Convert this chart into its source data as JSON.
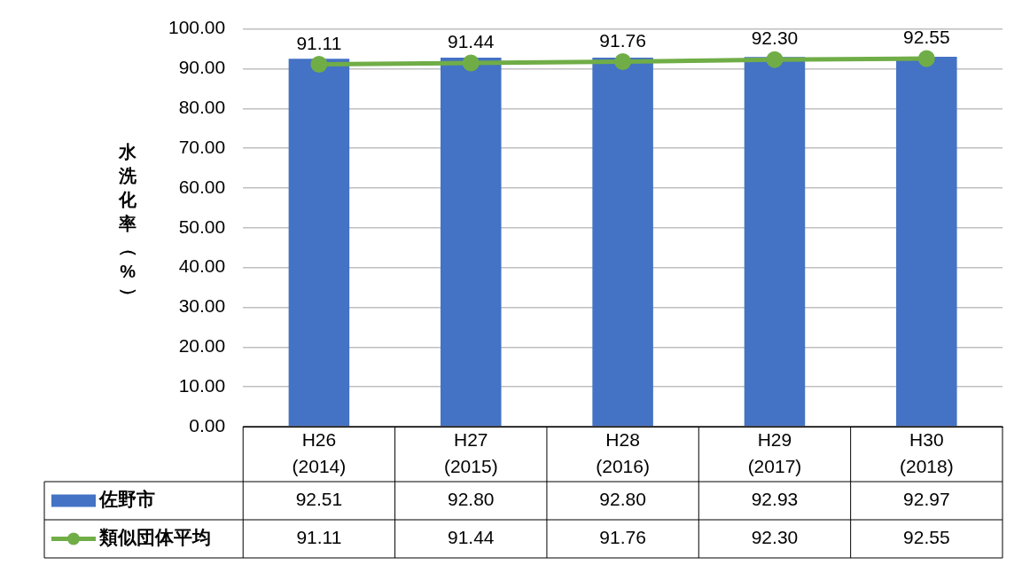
{
  "chart_data": {
    "type": "bar",
    "ylabel": "水洗化率（%）",
    "categories": [
      "H26 (2014)",
      "H27 (2015)",
      "H28 (2016)",
      "H29 (2017)",
      "H30 (2018)"
    ],
    "series": [
      {
        "name": "佐野市",
        "color": "#4472c4",
        "values": [
          92.51,
          92.8,
          92.8,
          92.93,
          92.97
        ],
        "value_labels": [
          "92.51",
          "92.80",
          "92.80",
          "92.93",
          "92.97"
        ]
      },
      {
        "name": "類似団体平均",
        "type": "line",
        "color": "#70ad47",
        "marker": "circle",
        "values": [
          91.11,
          91.44,
          91.76,
          92.3,
          92.55
        ],
        "value_labels": [
          "91.11",
          "91.44",
          "91.76",
          "92.30",
          "92.55"
        ]
      }
    ],
    "ylim": [
      0,
      100
    ],
    "yticks": [
      {
        "value": 0,
        "label": "0.00"
      },
      {
        "value": 10,
        "label": "10.00"
      },
      {
        "value": 20,
        "label": "20.00"
      },
      {
        "value": 30,
        "label": "30.00"
      },
      {
        "value": 40,
        "label": "40.00"
      },
      {
        "value": 50,
        "label": "50.00"
      },
      {
        "value": 60,
        "label": "60.00"
      },
      {
        "value": 70,
        "label": "70.00"
      },
      {
        "value": 80,
        "label": "80.00"
      },
      {
        "value": 90,
        "label": "90.00"
      },
      {
        "value": 100,
        "label": "100.00"
      }
    ],
    "grid": "y",
    "legend": "bottom",
    "data_labels": true
  }
}
